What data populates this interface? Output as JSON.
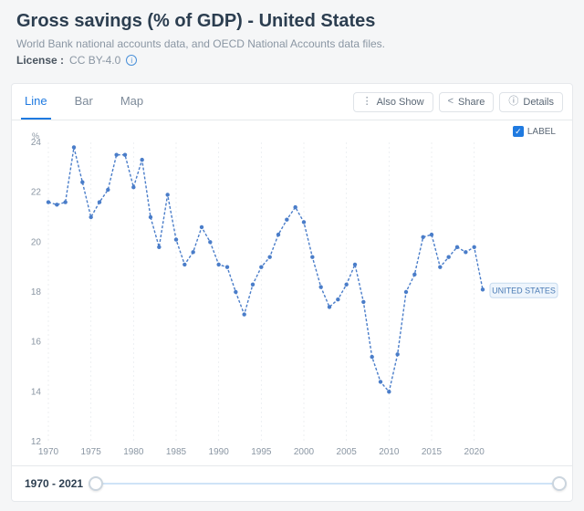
{
  "header": {
    "title": "Gross savings (% of GDP) - United States",
    "subtitle": "World Bank national accounts data, and OECD National Accounts data files.",
    "license_label": "License :",
    "license_value": "CC BY-4.0"
  },
  "tabs": {
    "items": [
      "Line",
      "Bar",
      "Map"
    ],
    "active_index": 0
  },
  "actions": {
    "also_show": "Also Show",
    "share": "Share",
    "details": "Details"
  },
  "label_checkbox": {
    "checked": true,
    "text": "LABEL"
  },
  "chart": {
    "type": "line",
    "background_color": "#ffffff",
    "grid_color": "#e8ecef",
    "axis_label_color": "#8a96a3",
    "axis_fontsize": 10,
    "y_unit": "%",
    "xlim": [
      1970,
      2021
    ],
    "ylim": [
      12,
      24
    ],
    "yticks": [
      12,
      14,
      16,
      18,
      20,
      22,
      24
    ],
    "xticks": [
      1970,
      1975,
      1980,
      1985,
      1990,
      1995,
      2000,
      2005,
      2010,
      2015,
      2020
    ],
    "series": {
      "name": "UNITED STATES",
      "color": "#4a7dc9",
      "line_width": 1.4,
      "line_dash": "3 2",
      "marker": "circle",
      "marker_size": 2.2,
      "end_label_bg": "#eef5fc",
      "end_label_border": "#c7dbef",
      "end_label_text_color": "#4a7bb5",
      "years": [
        1970,
        1971,
        1972,
        1973,
        1974,
        1975,
        1976,
        1977,
        1978,
        1979,
        1980,
        1981,
        1982,
        1983,
        1984,
        1985,
        1986,
        1987,
        1988,
        1989,
        1990,
        1991,
        1992,
        1993,
        1994,
        1995,
        1996,
        1997,
        1998,
        1999,
        2000,
        2001,
        2002,
        2003,
        2004,
        2005,
        2006,
        2007,
        2008,
        2009,
        2010,
        2011,
        2012,
        2013,
        2014,
        2015,
        2016,
        2017,
        2018,
        2019,
        2020,
        2021
      ],
      "values": [
        21.6,
        21.5,
        21.6,
        23.8,
        22.4,
        21.0,
        21.6,
        22.1,
        23.5,
        23.5,
        22.2,
        23.3,
        21.0,
        19.8,
        21.9,
        20.1,
        19.1,
        19.6,
        20.6,
        20.0,
        19.1,
        19.0,
        18.0,
        17.1,
        18.3,
        19.0,
        19.4,
        20.3,
        20.9,
        21.4,
        20.8,
        19.4,
        18.2,
        17.4,
        17.7,
        18.3,
        19.1,
        17.6,
        15.4,
        14.4,
        14.0,
        15.5,
        18.0,
        18.7,
        20.2,
        20.3,
        19.0,
        19.4,
        19.8,
        19.6,
        19.8,
        18.1
      ]
    }
  },
  "footer": {
    "year_start": "1970",
    "year_end": "2021",
    "slider": {
      "left_pct": 0,
      "right_pct": 100
    }
  }
}
